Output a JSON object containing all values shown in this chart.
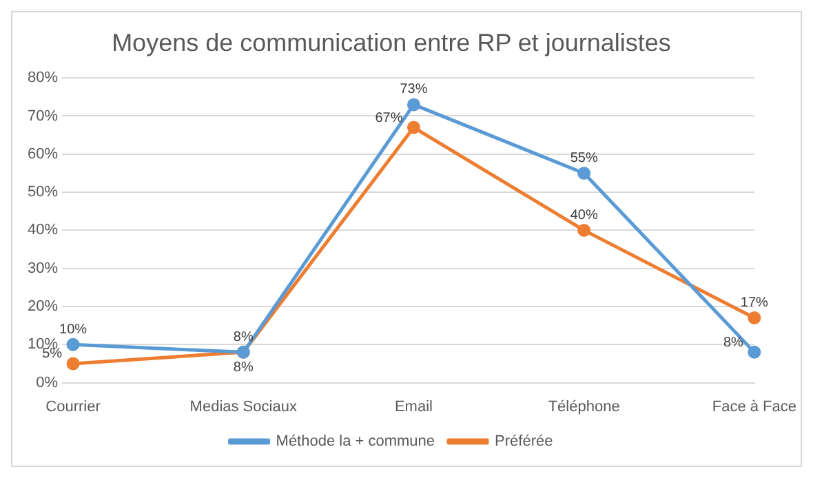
{
  "chart_data": {
    "type": "line",
    "title": "Moyens de communication entre RP et journalistes",
    "categories": [
      "Courrier",
      "Medias Sociaux",
      "Email",
      "Téléphone",
      "Face à Face"
    ],
    "series": [
      {
        "name": "Méthode la + commune",
        "color": "#5b9bd5",
        "values": [
          10,
          8,
          73,
          55,
          8
        ],
        "value_labels": [
          "10%",
          "8%",
          "73%",
          "55%",
          "8%"
        ]
      },
      {
        "name": "Préférée",
        "color": "#ed7d31",
        "values": [
          5,
          8,
          67,
          40,
          17
        ],
        "value_labels": [
          "5%",
          "8%",
          "67%",
          "40%",
          "17%"
        ]
      }
    ],
    "ylim": [
      0,
      80
    ],
    "yticks": [
      {
        "value": 0,
        "label": "0%"
      },
      {
        "value": 10,
        "label": "10%"
      },
      {
        "value": 20,
        "label": "20%"
      },
      {
        "value": 30,
        "label": "30%"
      },
      {
        "value": 40,
        "label": "40%"
      },
      {
        "value": 50,
        "label": "50%"
      },
      {
        "value": 60,
        "label": "60%"
      },
      {
        "value": 70,
        "label": "70%"
      },
      {
        "value": 80,
        "label": "80%"
      }
    ],
    "grid": "y",
    "legend": "bottom",
    "marker": "circle",
    "line_style": "solid"
  }
}
